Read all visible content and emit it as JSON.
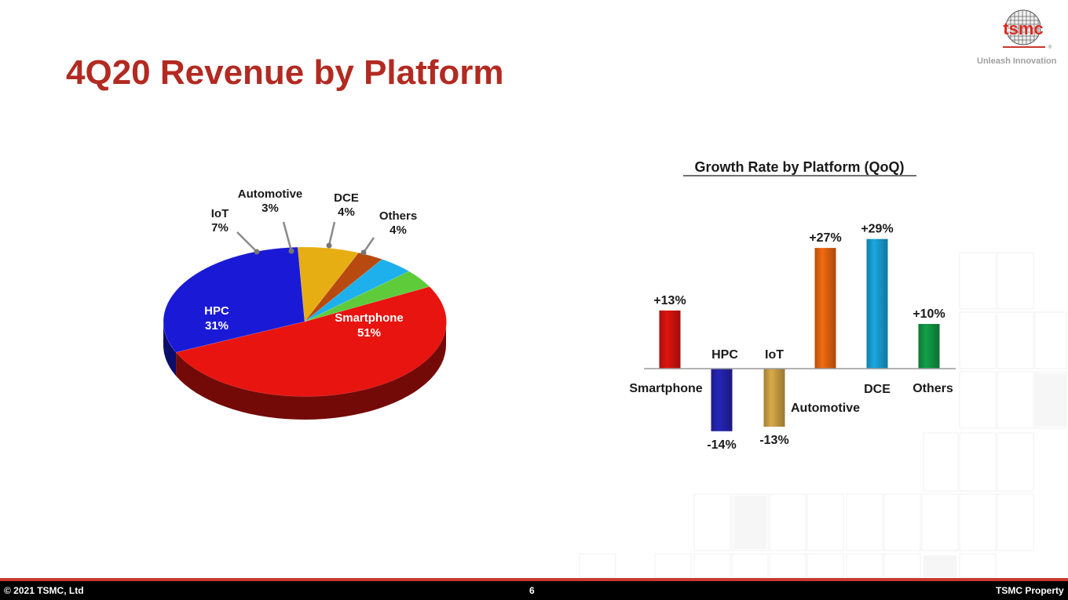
{
  "slide": {
    "title": "4Q20 Revenue by Platform",
    "logo_text": "tsmc",
    "tagline": "Unleash Innovation",
    "footer": {
      "copyright": "© 2021 TSMC, Ltd",
      "page_number": "6",
      "property": "TSMC Property"
    }
  },
  "colors": {
    "title": "#b22a21",
    "footer_bar": "#000000",
    "footer_accent": "#c8382e"
  },
  "chart_data": [
    {
      "type": "pie",
      "title": "",
      "slices": [
        {
          "label": "Smartphone",
          "value": 51,
          "value_label": "51%",
          "color": "#e8140f"
        },
        {
          "label": "HPC",
          "value": 31,
          "value_label": "31%",
          "color": "#1a1ad6"
        },
        {
          "label": "IoT",
          "value": 7,
          "value_label": "7%",
          "color": "#e6ae12"
        },
        {
          "label": "Automotive",
          "value": 3,
          "value_label": "3%",
          "color": "#b84a10"
        },
        {
          "label": "DCE",
          "value": 4,
          "value_label": "4%",
          "color": "#1eb0ec"
        },
        {
          "label": "Others",
          "value": 4,
          "value_label": "4%",
          "color": "#5ecb3a"
        }
      ]
    },
    {
      "type": "bar",
      "title": "Growth Rate by Platform (QoQ)",
      "categories": [
        "Smartphone",
        "HPC",
        "IoT",
        "Automotive",
        "DCE",
        "Others"
      ],
      "values": [
        13,
        -14,
        -13,
        27,
        29,
        10
      ],
      "value_labels": [
        "+13%",
        "-14%",
        "-13%",
        "+27%",
        "+29%",
        "+10%"
      ],
      "colors": [
        "#e0140f",
        "#2525b8",
        "#d8aa48",
        "#f26a10",
        "#1aa8e0",
        "#12a048"
      ],
      "unit": "%",
      "ylim": [
        -16,
        30
      ],
      "grid": false
    }
  ]
}
